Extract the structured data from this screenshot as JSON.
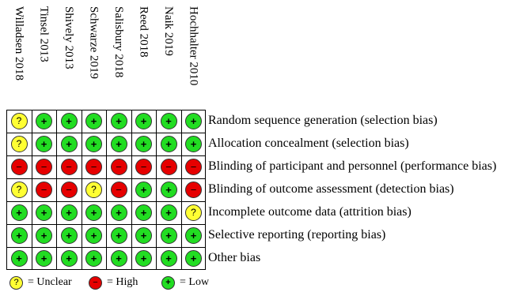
{
  "symbols": {
    "low": "+",
    "high": "−",
    "unclear": "?"
  },
  "colors": {
    "low": "#22dd22",
    "high": "#e60000",
    "unclear": "#ffff33"
  },
  "studies": [
    "Willadsen 2018",
    "Tinsel 2013",
    "Shively 2013",
    "Schwarze 2019",
    "Salisbury 2018",
    "Reed 2018",
    "Naik 2019",
    "Hochhalter 2010"
  ],
  "domains": [
    "Random sequence generation (selection bias)",
    "Allocation concealment (selection bias)",
    "Blinding of participant and personnel (performance bias)",
    "Blinding of outcome assessment (detection bias)",
    "Incomplete outcome data (attrition bias)",
    "Selective reporting (reporting bias)",
    "Other bias"
  ],
  "ratings": [
    [
      "unclear",
      "low",
      "low",
      "low",
      "low",
      "low",
      "low",
      "low"
    ],
    [
      "unclear",
      "low",
      "low",
      "low",
      "low",
      "low",
      "low",
      "low"
    ],
    [
      "high",
      "high",
      "high",
      "high",
      "high",
      "high",
      "high",
      "high"
    ],
    [
      "unclear",
      "high",
      "high",
      "unclear",
      "high",
      "low",
      "low",
      "high"
    ],
    [
      "low",
      "low",
      "low",
      "low",
      "low",
      "low",
      "low",
      "unclear"
    ],
    [
      "low",
      "low",
      "low",
      "low",
      "low",
      "low",
      "low",
      "low"
    ],
    [
      "low",
      "low",
      "low",
      "low",
      "low",
      "low",
      "low",
      "low"
    ]
  ],
  "legend": [
    {
      "key": "unclear",
      "label": "= Unclear"
    },
    {
      "key": "high",
      "label": "= High"
    },
    {
      "key": "low",
      "label": "= Low"
    }
  ]
}
